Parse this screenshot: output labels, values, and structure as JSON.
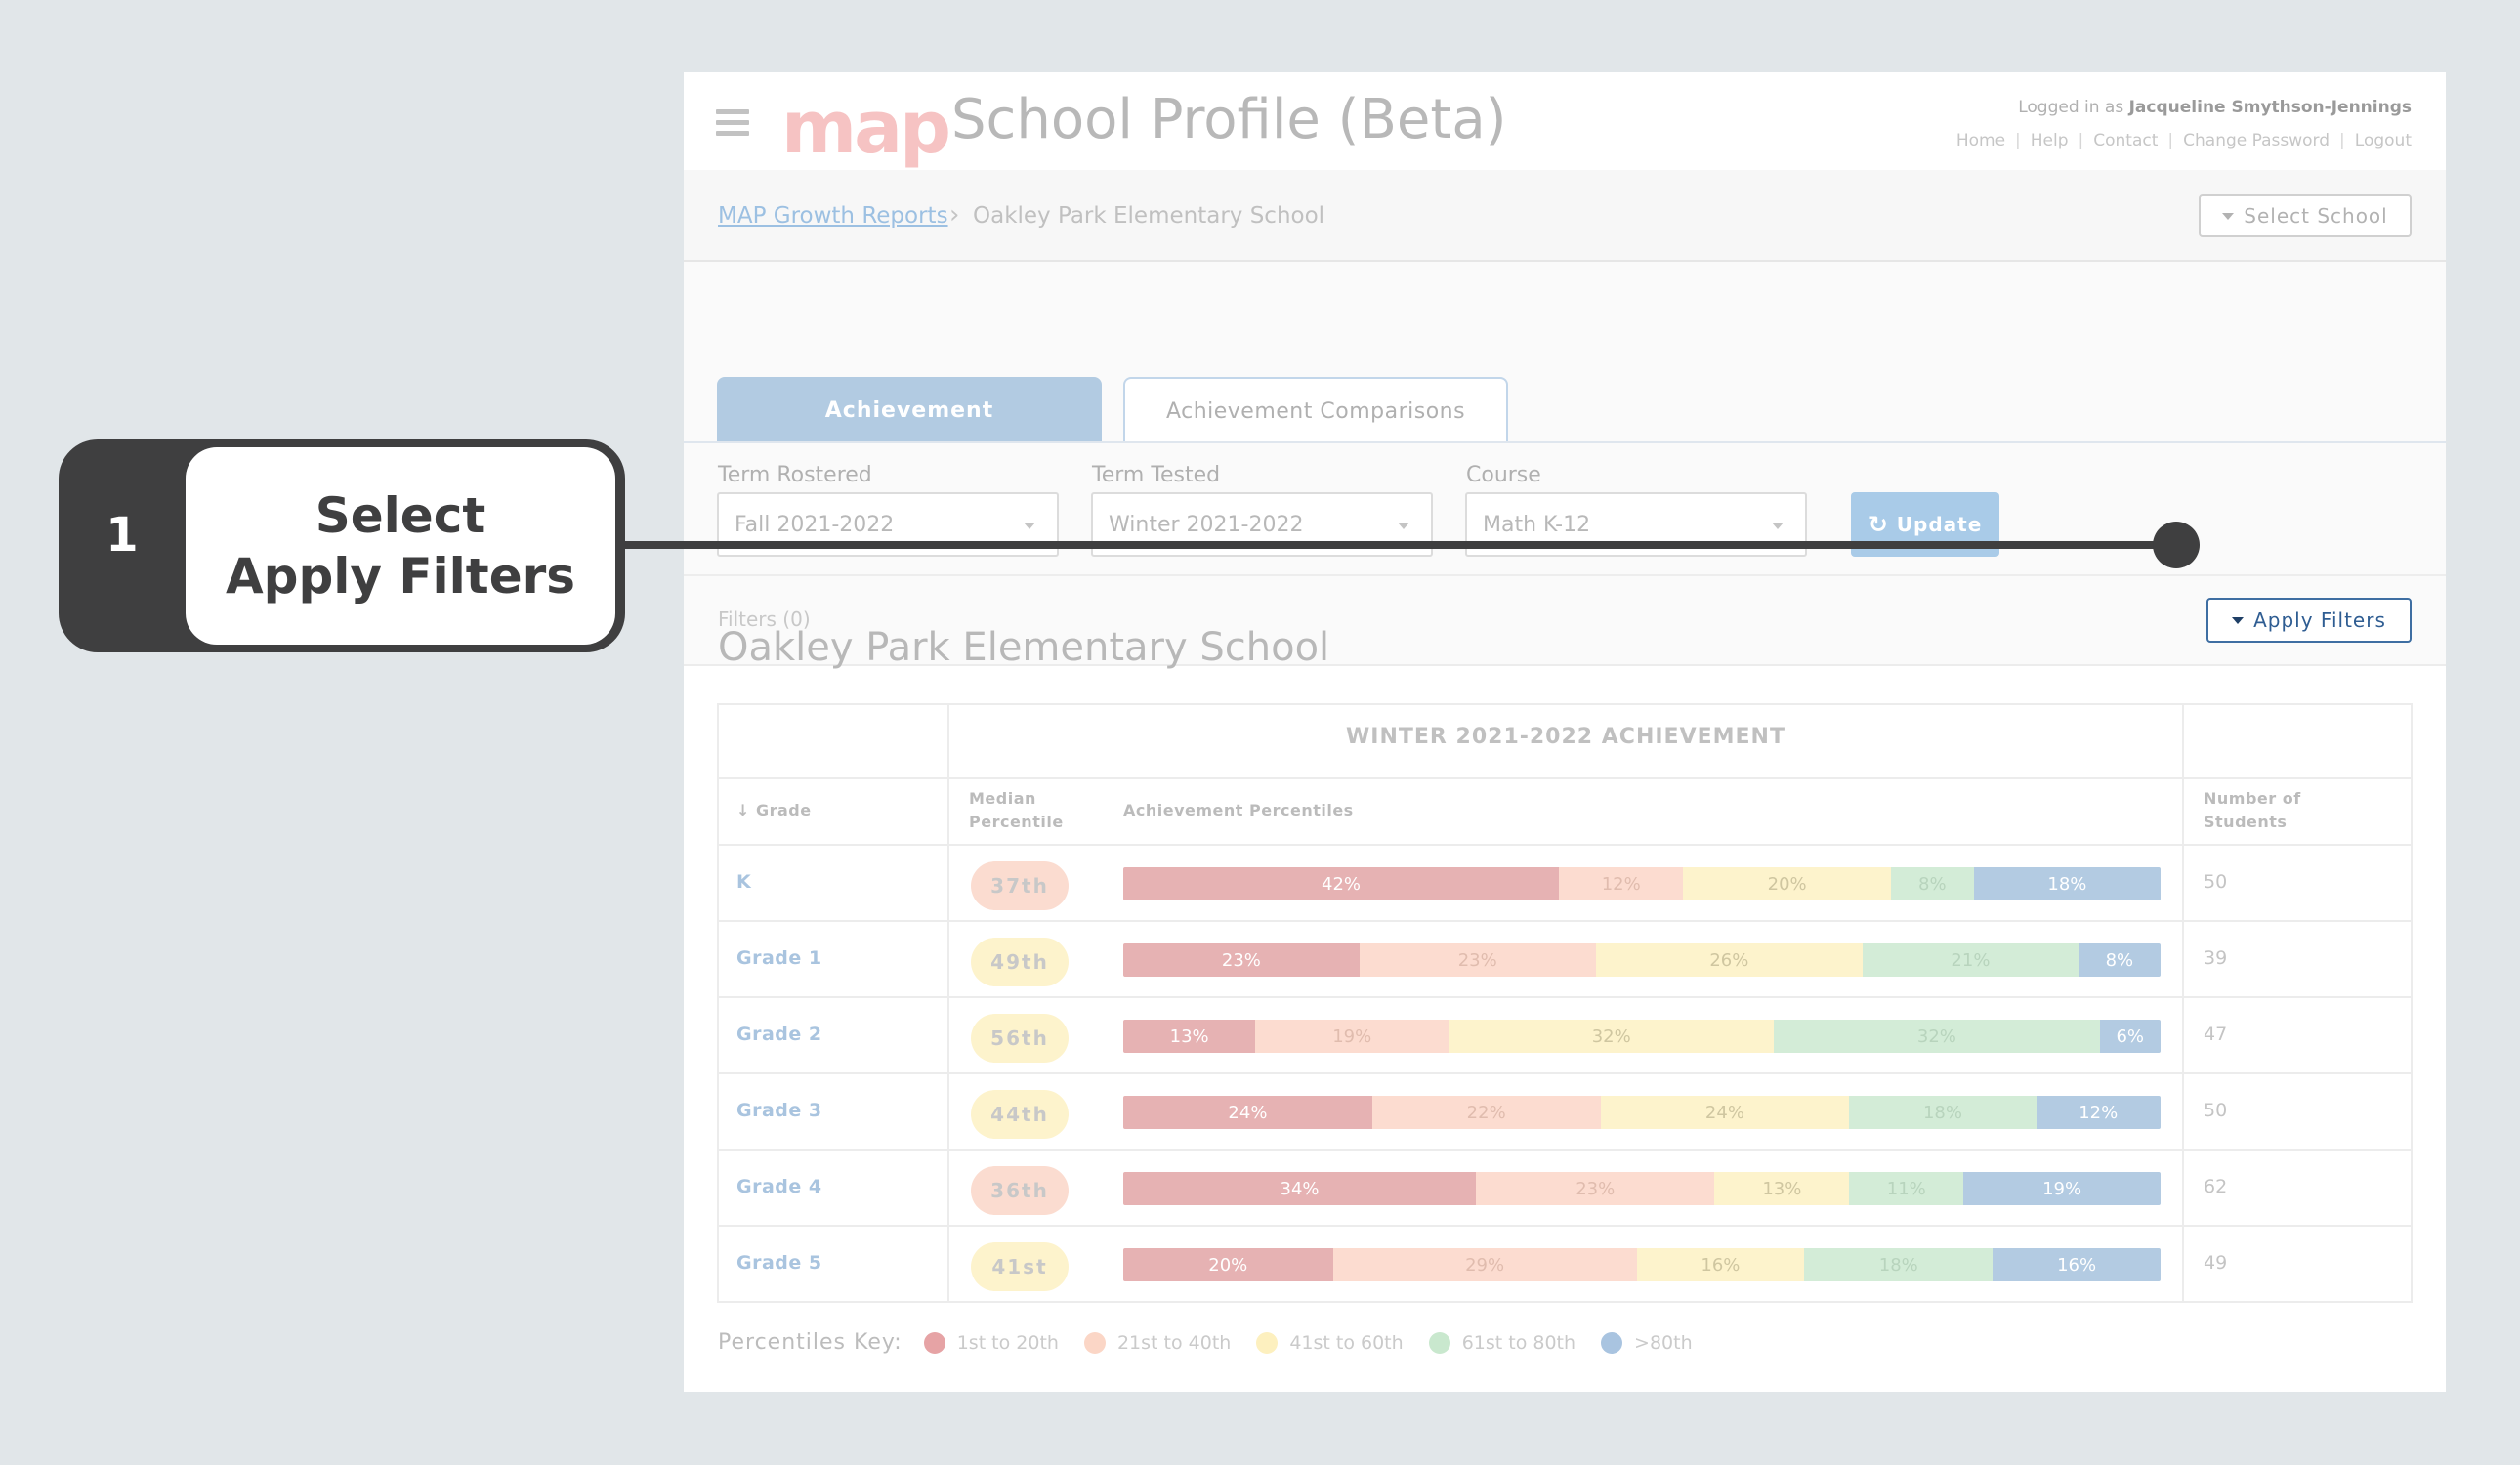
{
  "header": {
    "logo_text": "map",
    "title": "School Profile (Beta)",
    "logged_in_prefix": "Logged in as ",
    "user_name": "Jacqueline Smythson-Jennings",
    "links": [
      "Home",
      "Help",
      "Contact",
      "Change Password",
      "Logout"
    ]
  },
  "breadcrumb": {
    "link": "MAP Growth Reports",
    "current": "Oakley Park Elementary School",
    "select_school": "Select School"
  },
  "tabs": [
    {
      "label": "Achievement",
      "active": true
    },
    {
      "label": "Achievement Comparisons",
      "active": false
    }
  ],
  "controls": {
    "term_rostered": {
      "label": "Term Rostered",
      "value": "Fall 2021-2022"
    },
    "term_tested": {
      "label": "Term Tested",
      "value": "Winter 2021-2022"
    },
    "course": {
      "label": "Course",
      "value": "Math K-12"
    },
    "update_label": "Update"
  },
  "filters": {
    "label": "Filters (0)",
    "apply_label": "Apply Filters"
  },
  "school_name": "Oakley Park Elementary School",
  "table": {
    "title": "WINTER 2021-2022 ACHIEVEMENT",
    "headers": {
      "grade": "↓ Grade",
      "median_1": "Median",
      "median_2": "Percentile",
      "percentiles": "Achievement Percentiles",
      "students_1": "Number of",
      "students_2": "Students"
    },
    "rows": [
      {
        "grade": "K",
        "median": "37th",
        "median_color": "#fbdcd0",
        "segments": [
          42,
          12,
          20,
          8,
          18
        ],
        "count": "50"
      },
      {
        "grade": "Grade 1",
        "median": "49th",
        "median_color": "#fdf3cc",
        "segments": [
          23,
          23,
          26,
          21,
          8
        ],
        "count": "39"
      },
      {
        "grade": "Grade 2",
        "median": "56th",
        "median_color": "#fdf3cc",
        "segments": [
          13,
          19,
          32,
          32,
          6
        ],
        "count": "47"
      },
      {
        "grade": "Grade 3",
        "median": "44th",
        "median_color": "#fdf3cc",
        "segments": [
          24,
          22,
          24,
          18,
          12
        ],
        "count": "50"
      },
      {
        "grade": "Grade 4",
        "median": "36th",
        "median_color": "#fbdcd0",
        "segments": [
          34,
          23,
          13,
          11,
          19
        ],
        "count": "62"
      },
      {
        "grade": "Grade 5",
        "median": "41st",
        "median_color": "#fdf3cc",
        "segments": [
          20,
          29,
          16,
          18,
          16
        ],
        "count": "49"
      }
    ],
    "segment_colors": [
      "#e6b2b3",
      "#fcdcd0",
      "#fdf3cc",
      "#d3ecd7",
      "#b3cbe2"
    ],
    "segment_text_colors": [
      "#ffffff",
      "#e0bcae",
      "#cfc6a0",
      "#b8d4bd",
      "#ffffff"
    ]
  },
  "key": {
    "title": "Percentiles Key:",
    "items": [
      {
        "label": "1st to 20th",
        "color": "#e6a3a5"
      },
      {
        "label": "21st to 40th",
        "color": "#fbd6c6"
      },
      {
        "label": "41st to 60th",
        "color": "#fdf0bf"
      },
      {
        "label": "61st to 80th",
        "color": "#c9e8ce"
      },
      {
        "label": ">80th",
        "color": "#a9c4e0"
      }
    ]
  },
  "callout": {
    "number": "1",
    "line1": "Select",
    "line2": "Apply Filters"
  }
}
